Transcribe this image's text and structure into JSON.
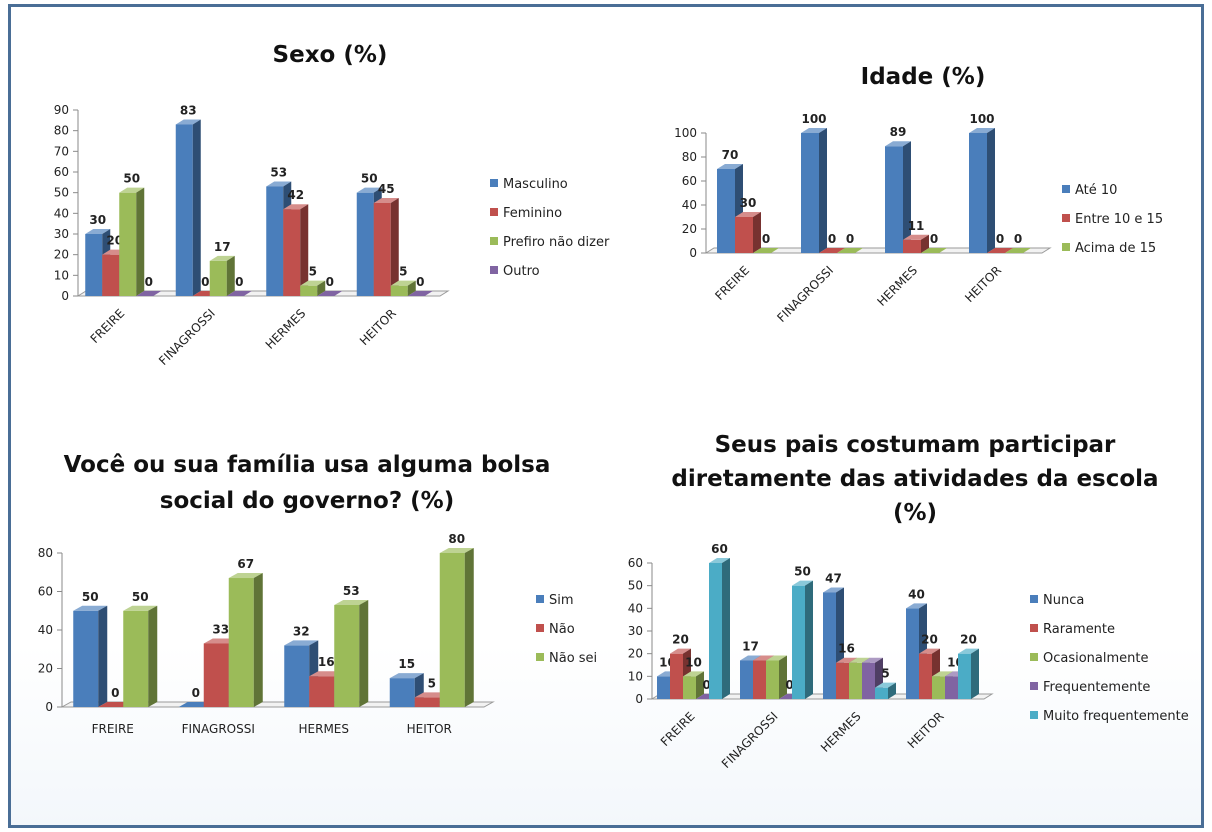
{
  "chart_data": [
    {
      "type": "bar",
      "title": "Sexo (%)",
      "categories": [
        "FREIRE",
        "FINAGROSSI",
        "HERMES",
        "HEITOR"
      ],
      "ylim": [
        0,
        90
      ],
      "yticks": [
        0,
        10,
        20,
        30,
        40,
        50,
        60,
        70,
        80,
        90
      ],
      "legend": "right",
      "series": [
        {
          "name": "Masculino",
          "color": "#4a7ebb",
          "values": [
            30,
            83,
            53,
            50
          ]
        },
        {
          "name": "Feminino",
          "color": "#c0504d",
          "values": [
            20,
            0,
            42,
            45
          ]
        },
        {
          "name": "Prefiro não dizer",
          "color": "#9bbb59",
          "values": [
            50,
            17,
            5,
            5
          ]
        },
        {
          "name": "Outro",
          "color": "#8064a2",
          "values": [
            0,
            0,
            0,
            0
          ]
        }
      ]
    },
    {
      "type": "bar",
      "title": "Idade (%)",
      "categories": [
        "FREIRE",
        "FINAGROSSI",
        "HERMES",
        "HEITOR"
      ],
      "ylim": [
        0,
        100
      ],
      "yticks": [
        0,
        20,
        40,
        60,
        80,
        100
      ],
      "legend": "right",
      "series": [
        {
          "name": "Até 10",
          "color": "#4a7ebb",
          "values": [
            70,
            100,
            89,
            100
          ]
        },
        {
          "name": "Entre 10 e 15",
          "color": "#c0504d",
          "values": [
            30,
            0,
            11,
            0
          ]
        },
        {
          "name": "Acima de 15",
          "color": "#9bbb59",
          "values": [
            0,
            0,
            0,
            0
          ]
        }
      ]
    },
    {
      "type": "bar",
      "title": [
        "Você ou sua família usa alguma bolsa",
        "social do governo? (%)"
      ],
      "categories": [
        "FREIRE",
        "FINAGROSSI",
        "HERMES",
        "HEITOR"
      ],
      "ylim": [
        0,
        80
      ],
      "yticks": [
        0,
        20,
        40,
        60,
        80
      ],
      "legend": "right",
      "series": [
        {
          "name": "Sim",
          "color": "#4a7ebb",
          "values": [
            50,
            0,
            32,
            15
          ]
        },
        {
          "name": "Não",
          "color": "#c0504d",
          "values": [
            0,
            33,
            16,
            5
          ]
        },
        {
          "name": "Não sei",
          "color": "#9bbb59",
          "values": [
            50,
            67,
            53,
            80
          ]
        }
      ]
    },
    {
      "type": "bar",
      "title": [
        "Seus pais costumam participar",
        "diretamente das atividades da escola",
        "(%)"
      ],
      "categories": [
        "FREIRE",
        "FINAGROSSI",
        "HERMES",
        "HEITOR"
      ],
      "ylim": [
        0,
        60
      ],
      "yticks": [
        0,
        10,
        20,
        30,
        40,
        50,
        60
      ],
      "legend": "right",
      "series": [
        {
          "name": "Nunca",
          "color": "#4a7ebb",
          "values": [
            10,
            17,
            47,
            40
          ]
        },
        {
          "name": "Raramente",
          "color": "#c0504d",
          "values": [
            20,
            17,
            16,
            20
          ]
        },
        {
          "name": "Ocasionalmente",
          "color": "#9bbb59",
          "values": [
            10,
            17,
            16,
            10
          ]
        },
        {
          "name": "Frequentemente",
          "color": "#8064a2",
          "values": [
            0,
            0,
            16,
            10
          ]
        },
        {
          "name": "Muito frequentemente",
          "color": "#4bacc6",
          "values": [
            60,
            50,
            5,
            20
          ]
        }
      ],
      "data_labels": [
        [
          "10",
          "20",
          "10",
          "0",
          "60"
        ],
        [
          "17",
          "",
          "",
          "0",
          "50"
        ],
        [
          "47",
          "16",
          "",
          "",
          "5"
        ],
        [
          "40",
          "20",
          "",
          "10",
          "20"
        ]
      ]
    }
  ]
}
